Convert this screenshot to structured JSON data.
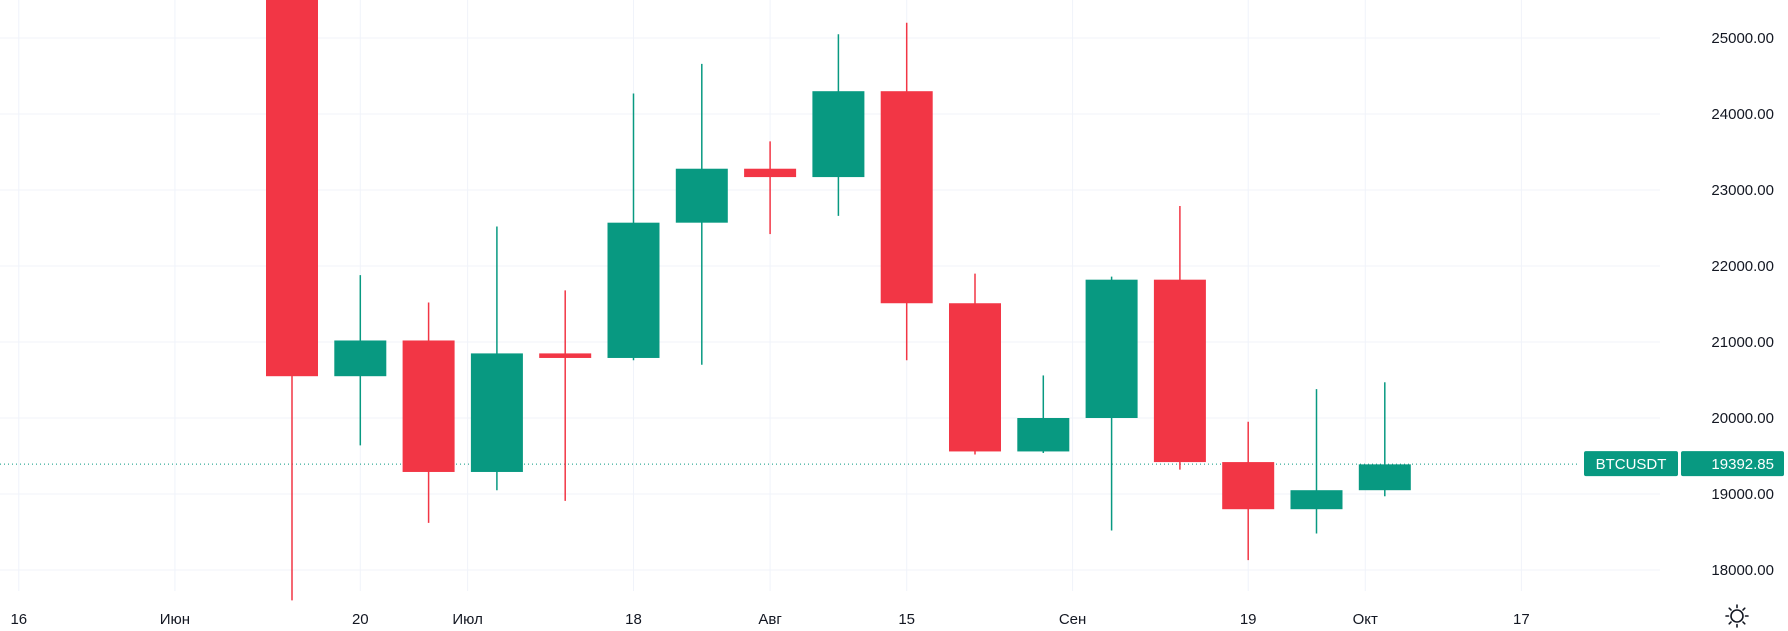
{
  "chart_data": {
    "type": "candlestick",
    "symbol": "BTCUSDT",
    "last_price": 19392.85,
    "last_price_label": "19392.85",
    "ylim": [
      17500,
      25300
    ],
    "y_ticks": [
      {
        "value": 18000,
        "label": "18000.00"
      },
      {
        "value": 19000,
        "label": "19000.00"
      },
      {
        "value": 20000,
        "label": "20000.00"
      },
      {
        "value": 21000,
        "label": "21000.00"
      },
      {
        "value": 22000,
        "label": "22000.00"
      },
      {
        "value": 23000,
        "label": "23000.00"
      },
      {
        "value": 24000,
        "label": "24000.00"
      },
      {
        "value": 25000,
        "label": "25000.00"
      }
    ],
    "x_ticks": [
      {
        "date": "2022-05-16",
        "label": "16"
      },
      {
        "date": "2022-06-01",
        "label": "Июн"
      },
      {
        "date": "2022-06-20",
        "label": "20"
      },
      {
        "date": "2022-07-01",
        "label": "Июл"
      },
      {
        "date": "2022-07-18",
        "label": "18"
      },
      {
        "date": "2022-08-01",
        "label": "Авг"
      },
      {
        "date": "2022-08-15",
        "label": "15"
      },
      {
        "date": "2022-09-01",
        "label": "Сен"
      },
      {
        "date": "2022-09-19",
        "label": "19"
      },
      {
        "date": "2022-10-01",
        "label": "Окт"
      },
      {
        "date": "2022-10-17",
        "label": "17"
      }
    ],
    "candles": [
      {
        "date": "2022-06-13",
        "open": 26500,
        "high": 26500,
        "low": 17600,
        "close": 20550
      },
      {
        "date": "2022-06-20",
        "open": 20550,
        "high": 21880,
        "low": 19640,
        "close": 21020
      },
      {
        "date": "2022-06-27",
        "open": 21020,
        "high": 21520,
        "low": 18620,
        "close": 19290
      },
      {
        "date": "2022-07-04",
        "open": 19290,
        "high": 22520,
        "low": 19050,
        "close": 20850
      },
      {
        "date": "2022-07-11",
        "open": 20850,
        "high": 21680,
        "low": 18910,
        "close": 20790
      },
      {
        "date": "2022-07-18",
        "open": 20790,
        "high": 24270,
        "low": 20760,
        "close": 22570
      },
      {
        "date": "2022-07-25",
        "open": 22570,
        "high": 24660,
        "low": 20700,
        "close": 23280
      },
      {
        "date": "2022-08-01",
        "open": 23280,
        "high": 23640,
        "low": 22420,
        "close": 23170
      },
      {
        "date": "2022-08-08",
        "open": 23170,
        "high": 25050,
        "low": 22660,
        "close": 24300
      },
      {
        "date": "2022-08-15",
        "open": 24300,
        "high": 25200,
        "low": 20760,
        "close": 21510
      },
      {
        "date": "2022-08-22",
        "open": 21510,
        "high": 21900,
        "low": 19520,
        "close": 19560
      },
      {
        "date": "2022-08-29",
        "open": 19560,
        "high": 20560,
        "low": 19540,
        "close": 20000
      },
      {
        "date": "2022-09-05",
        "open": 20000,
        "high": 21860,
        "low": 18520,
        "close": 21820
      },
      {
        "date": "2022-09-12",
        "open": 21820,
        "high": 22790,
        "low": 19320,
        "close": 19420
      },
      {
        "date": "2022-09-19",
        "open": 19420,
        "high": 19950,
        "low": 18130,
        "close": 18800
      },
      {
        "date": "2022-09-26",
        "open": 18800,
        "high": 20380,
        "low": 18480,
        "close": 19050
      },
      {
        "date": "2022-10-03",
        "open": 19050,
        "high": 20470,
        "low": 18970,
        "close": 19390
      }
    ],
    "grid": true,
    "colors": {
      "up": "#089981",
      "down": "#f23645",
      "grid": "#f0f3fa",
      "text": "#131722",
      "price_line": "#089981",
      "price_badge": "#089981"
    },
    "icons": {
      "settings": "sun-settings-icon"
    }
  }
}
